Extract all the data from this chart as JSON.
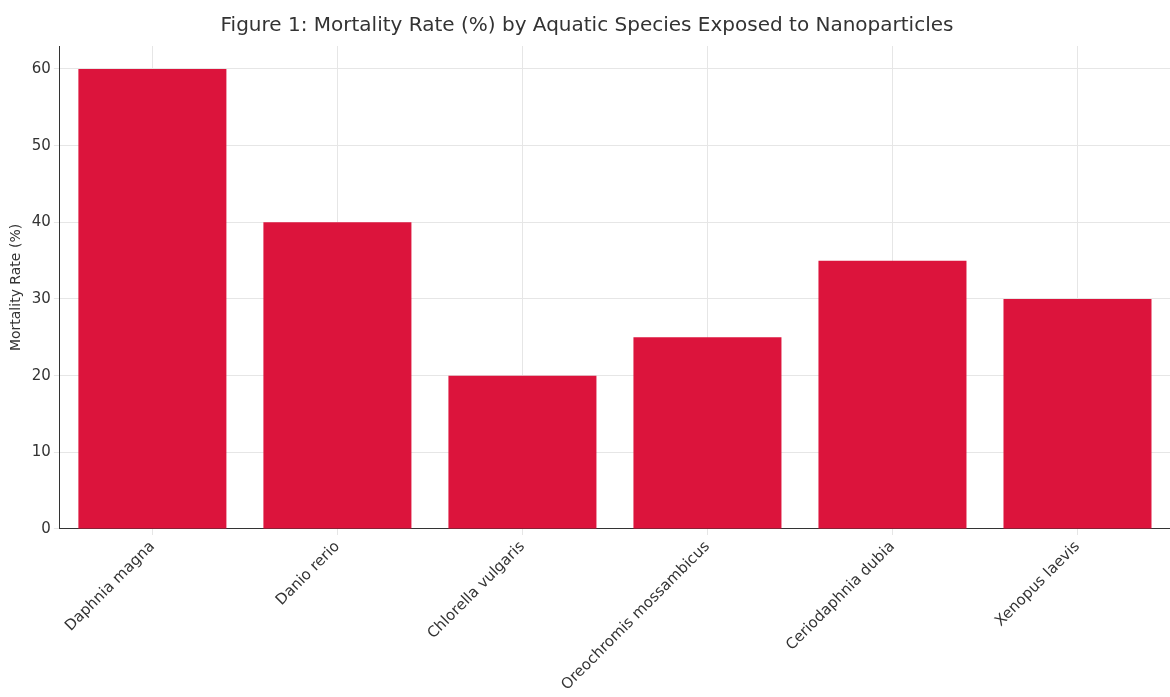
{
  "chart_data": {
    "type": "bar",
    "title": "Figure 1: Mortality Rate (%) by Aquatic Species Exposed to Nanoparticles",
    "ylabel": "Mortality Rate (%)",
    "categories": [
      "Daphnia magna",
      "Danio rerio",
      "Chlorella vulgaris",
      "Oreochromis mossambicus",
      "Ceriodaphnia dubia",
      "Xenopus laevis"
    ],
    "values": [
      60,
      40,
      20,
      25,
      35,
      30
    ],
    "color": "#dc143c",
    "ylim": [
      0,
      63
    ],
    "yticks": [
      0,
      10,
      20,
      30,
      40,
      50,
      60
    ],
    "grid": true,
    "legend": false
  }
}
